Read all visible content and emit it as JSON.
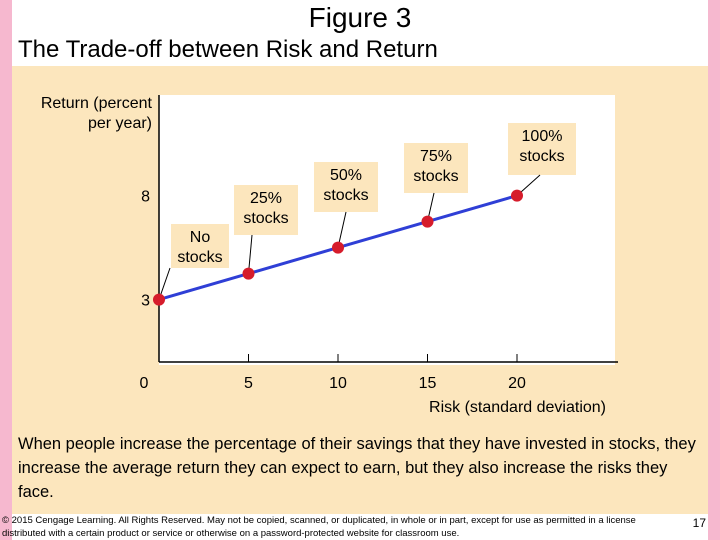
{
  "slide": {
    "title": "Figure 3",
    "subtitle": "The Trade-off between Risk and Return",
    "caption": "When people increase the percentage of their savings that they have invested in stocks, they increase the average return they can expect to earn, but they also increase the risks they face.",
    "footer": "© 2015 Cengage Learning. All Rights Reserved. May not be copied, scanned, or duplicated, in whole or in part, except for use as permitted in a license distributed with a certain product or service or otherwise on a password-protected website for classroom use.",
    "page_number": "17"
  },
  "colors": {
    "accent_pink": "#f6b8cf",
    "panel_beige": "#fce6bd",
    "label_box": "#fce6bd",
    "line_blue": "#2f3fd6",
    "point_red": "#d61c2b"
  },
  "chart_data": {
    "type": "line",
    "title": "",
    "xlabel": "Risk (standard deviation)",
    "ylabel": "Return (percent per year)",
    "xlim": [
      0,
      22
    ],
    "ylim": [
      0,
      10
    ],
    "x_ticks": [
      0,
      5,
      10,
      15,
      20
    ],
    "x_tick_labels": [
      "0",
      "5",
      "10",
      "15",
      "20"
    ],
    "y_tick_labels": [
      {
        "value": 8,
        "label": "8"
      },
      {
        "value": 3,
        "label": "3"
      }
    ],
    "series": [
      {
        "x": [
          0,
          5,
          10,
          15,
          20
        ],
        "y": [
          3,
          4.25,
          5.5,
          6.75,
          8
        ]
      }
    ],
    "point_labels": [
      {
        "x": 0,
        "lines": [
          "No",
          "stocks"
        ]
      },
      {
        "x": 5,
        "lines": [
          "25%",
          "stocks"
        ]
      },
      {
        "x": 10,
        "lines": [
          "50%",
          "stocks"
        ]
      },
      {
        "x": 15,
        "lines": [
          "75%",
          "stocks"
        ]
      },
      {
        "x": 20,
        "lines": [
          "100%",
          "stocks"
        ]
      }
    ]
  }
}
